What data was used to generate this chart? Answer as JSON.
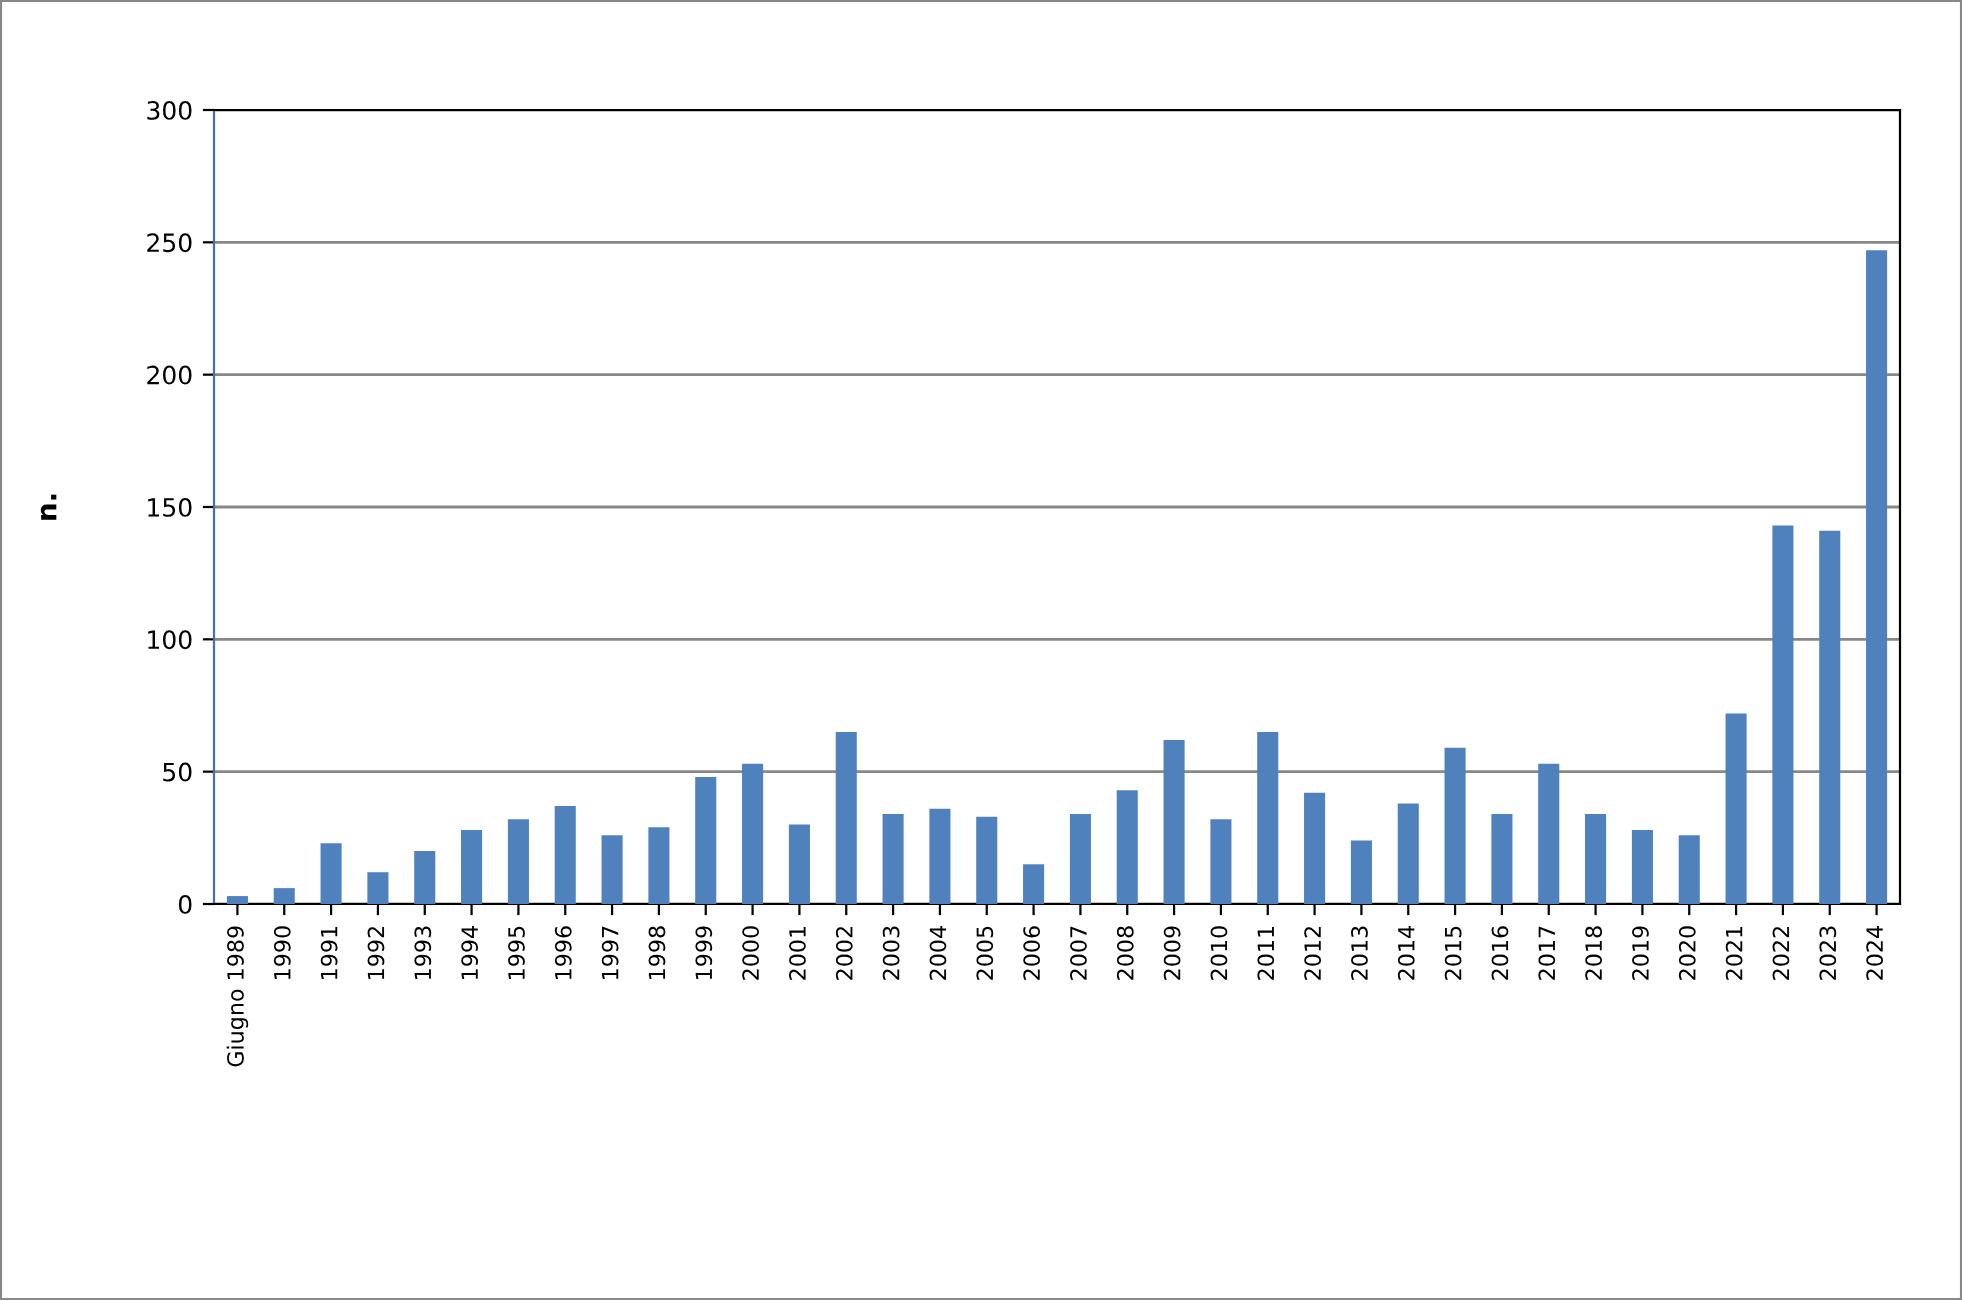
{
  "chart_data": {
    "type": "bar",
    "ylabel": "n.",
    "categories": [
      "Giugno 1989",
      "1990",
      "1991",
      "1992",
      "1993",
      "1994",
      "1995",
      "1996",
      "1997",
      "1998",
      "1999",
      "2000",
      "2001",
      "2002",
      "2003",
      "2004",
      "2005",
      "2006",
      "2007",
      "2008",
      "2009",
      "2010",
      "2011",
      "2012",
      "2013",
      "2014",
      "2015",
      "2016",
      "2017",
      "2018",
      "2019",
      "2020",
      "2021",
      "2022",
      "2023",
      "2024"
    ],
    "values": [
      3,
      6,
      23,
      12,
      20,
      28,
      32,
      37,
      26,
      29,
      48,
      53,
      30,
      65,
      34,
      36,
      33,
      15,
      34,
      43,
      62,
      32,
      65,
      42,
      24,
      38,
      59,
      34,
      53,
      34,
      28,
      26,
      72,
      143,
      141,
      247
    ],
    "color": "#4f81bd",
    "ylim": [
      0,
      300
    ],
    "yticks": [
      0,
      50,
      100,
      150,
      200,
      250,
      300
    ],
    "grid": "y",
    "legend": false
  }
}
